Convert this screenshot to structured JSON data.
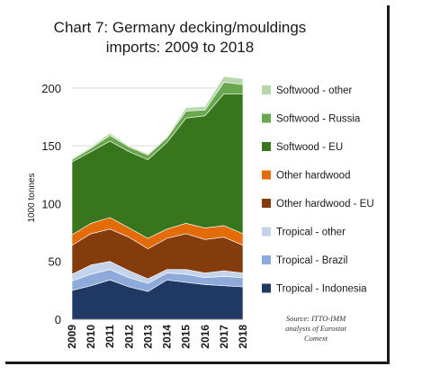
{
  "chart_data": {
    "type": "area",
    "stacked": true,
    "title_line1": "Chart 7: Germany decking/mouldings",
    "title_line2": "imports: 2009 to 2018",
    "ylabel": "1000 tonnes",
    "xlabel": "",
    "ylim": [
      0,
      210
    ],
    "yticks": [
      0,
      50,
      100,
      150,
      200
    ],
    "x": [
      "2009",
      "2010",
      "2011",
      "2012",
      "2013",
      "2014",
      "2015",
      "2016",
      "2017",
      "2018"
    ],
    "grid": true,
    "legend_position": "right",
    "series": [
      {
        "name": "Tropical - Indonesia",
        "color": "#1f3864",
        "values": [
          25,
          29,
          34,
          28,
          24,
          34,
          32,
          30,
          29,
          28
        ]
      },
      {
        "name": "Tropical - Brazil",
        "color": "#8eaadb",
        "values": [
          8,
          10,
          9,
          8,
          7,
          6,
          7,
          6,
          8,
          8
        ]
      },
      {
        "name": "Tropical - other",
        "color": "#c5d3ea",
        "values": [
          6,
          8,
          7,
          6,
          4,
          3,
          4,
          4,
          5,
          4
        ]
      },
      {
        "name": "Other hardwood - EU",
        "color": "#843c0c",
        "values": [
          25,
          27,
          28,
          29,
          26,
          27,
          31,
          29,
          29,
          24
        ]
      },
      {
        "name": "Other hardwood",
        "color": "#e36c09",
        "values": [
          9,
          9,
          10,
          8,
          9,
          8,
          9,
          10,
          10,
          10
        ]
      },
      {
        "name": "Softwood - EU",
        "color": "#38761d",
        "values": [
          63,
          62,
          66,
          66,
          68,
          75,
          91,
          97,
          114,
          121
        ]
      },
      {
        "name": "Softwood - Russia",
        "color": "#6aa84f",
        "values": [
          2,
          3,
          5,
          4,
          4,
          4,
          6,
          5,
          10,
          8
        ]
      },
      {
        "name": "Softwood - other",
        "color": "#b6d7a8",
        "values": [
          1,
          1,
          2,
          1,
          1,
          1,
          3,
          3,
          5,
          5
        ]
      }
    ],
    "source": [
      "Source: ITTO-IMM",
      "analysis of Eurostat",
      "Comext"
    ]
  }
}
